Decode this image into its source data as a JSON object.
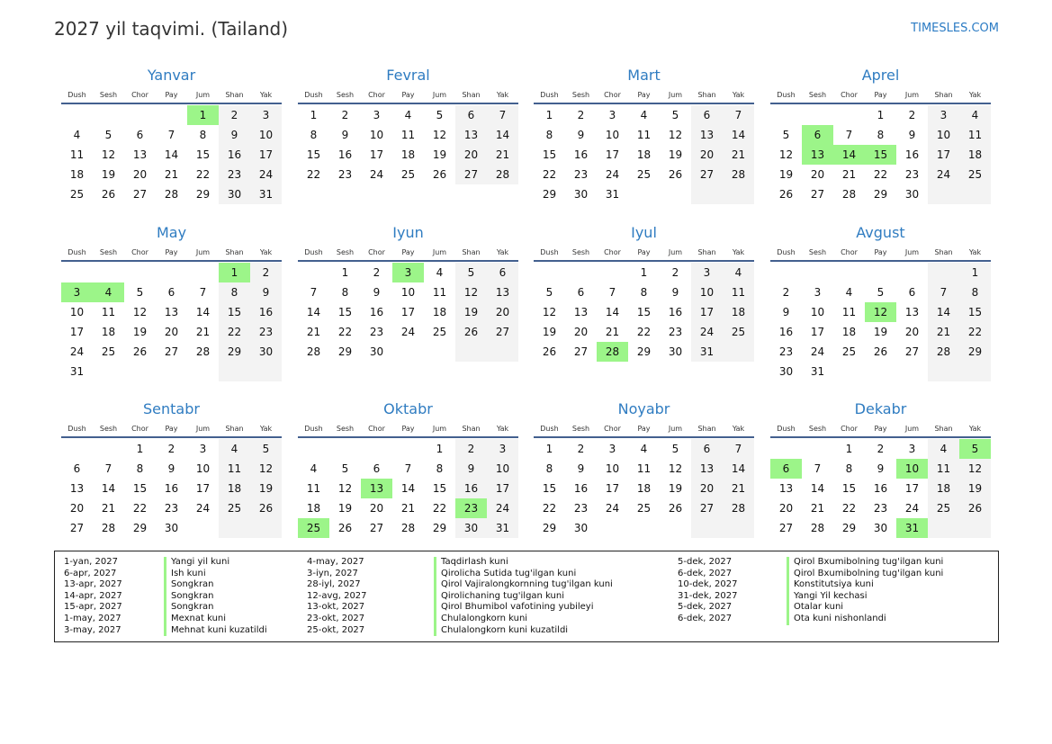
{
  "header": {
    "title": "2027 yil taqvimi. (Tailand)",
    "brand": "TIMESLES.COM"
  },
  "weekdays": [
    "Dush",
    "Sesh",
    "Chor",
    "Pay",
    "Jum",
    "Shan",
    "Yak"
  ],
  "colors": {
    "accent": "#2f7cc1",
    "holiday": "#9cf589",
    "weekend": "#f3f3f3"
  },
  "months": [
    {
      "name": "Yanvar",
      "offset": 4,
      "days": 31,
      "holidays": [
        1
      ]
    },
    {
      "name": "Fevral",
      "offset": 0,
      "days": 28,
      "holidays": []
    },
    {
      "name": "Mart",
      "offset": 0,
      "days": 31,
      "holidays": []
    },
    {
      "name": "Aprel",
      "offset": 3,
      "days": 30,
      "holidays": [
        6,
        13,
        14,
        15
      ]
    },
    {
      "name": "May",
      "offset": 5,
      "days": 31,
      "holidays": [
        1,
        3,
        4
      ]
    },
    {
      "name": "Iyun",
      "offset": 1,
      "days": 30,
      "holidays": [
        3
      ]
    },
    {
      "name": "Iyul",
      "offset": 3,
      "days": 31,
      "holidays": [
        28
      ]
    },
    {
      "name": "Avgust",
      "offset": 6,
      "days": 31,
      "holidays": [
        12
      ]
    },
    {
      "name": "Sentabr",
      "offset": 2,
      "days": 30,
      "holidays": []
    },
    {
      "name": "Oktabr",
      "offset": 4,
      "days": 31,
      "holidays": [
        13,
        23,
        25
      ]
    },
    {
      "name": "Noyabr",
      "offset": 0,
      "days": 30,
      "holidays": []
    },
    {
      "name": "Dekabr",
      "offset": 2,
      "days": 31,
      "holidays": [
        5,
        6,
        10,
        31
      ]
    }
  ],
  "legend": [
    {
      "dates": [
        "1-yan, 2027",
        "6-apr, 2027",
        "13-apr, 2027",
        "14-apr, 2027",
        "15-apr, 2027",
        "1-may, 2027",
        "3-may, 2027"
      ],
      "names": [
        "Yangi yil kuni",
        "Ish kuni",
        "Songkran",
        "Songkran",
        "Songkran",
        "Mexnat kuni",
        "Mehnat kuni kuzatildi"
      ]
    },
    {
      "dates": [
        "4-may, 2027",
        "3-iyn, 2027",
        "28-iyl, 2027",
        "12-avg, 2027",
        "13-okt, 2027",
        "23-okt, 2027",
        "25-okt, 2027"
      ],
      "names": [
        "Taqdirlash kuni",
        "Qirolicha Sutida tug'ilgan kuni",
        "Qirol Vajiralongkornning tug'ilgan kuni",
        "Qirolichaning tug'ilgan kuni",
        "Qirol Bhumibol vafotining yubileyi",
        "Chulalongkorn kuni",
        "Chulalongkorn kuni kuzatildi"
      ]
    },
    {
      "dates": [
        "5-dek, 2027",
        "6-dek, 2027",
        "10-dek, 2027",
        "31-dek, 2027",
        "5-dek, 2027",
        "6-dek, 2027"
      ],
      "names": [
        "Qirol Bxumibolning tug'ilgan kuni",
        "Qirol Bxumibolning tug'ilgan kuni",
        "Konstitutsiya kuni",
        "Yangi Yil kechasi",
        "Otalar kuni",
        "Ota kuni nishonlandi"
      ]
    }
  ]
}
